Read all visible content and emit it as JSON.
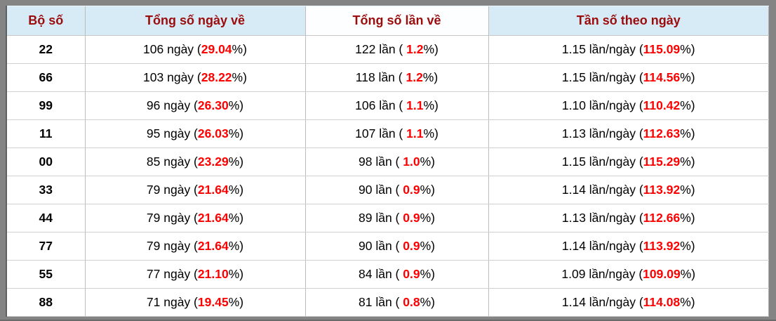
{
  "colors": {
    "frame_background": "#848484",
    "header_background": "#d7ebf7",
    "header_highlight_background": "#fcfeff",
    "header_text": "#9b0c0c",
    "value_red": "#fe0000",
    "row_background": "#ffffff"
  },
  "table": {
    "headers": [
      "Bộ số",
      "Tổng số ngày về",
      "Tổng số lần về",
      "Tần số theo ngày"
    ],
    "highlighted_header_index": 2,
    "rows": [
      {
        "set": "22",
        "days": {
          "pre": "106 ngày (",
          "val": "29.04",
          "suf": "%)"
        },
        "times": {
          "pre": "122 lần ( ",
          "val": "1.2",
          "suf": "%)"
        },
        "freq": {
          "pre": "1.15 lần/ngày (",
          "val": "115.09",
          "suf": "%)"
        }
      },
      {
        "set": "66",
        "days": {
          "pre": "103 ngày (",
          "val": "28.22",
          "suf": "%)"
        },
        "times": {
          "pre": "118 lần ( ",
          "val": "1.2",
          "suf": "%)"
        },
        "freq": {
          "pre": "1.15 lần/ngày (",
          "val": "114.56",
          "suf": "%)"
        }
      },
      {
        "set": "99",
        "days": {
          "pre": "96 ngày (",
          "val": "26.30",
          "suf": "%)"
        },
        "times": {
          "pre": "106 lần ( ",
          "val": "1.1",
          "suf": "%)"
        },
        "freq": {
          "pre": "1.10 lần/ngày (",
          "val": "110.42",
          "suf": "%)"
        }
      },
      {
        "set": "11",
        "days": {
          "pre": "95 ngày (",
          "val": "26.03",
          "suf": "%)"
        },
        "times": {
          "pre": "107 lần ( ",
          "val": "1.1",
          "suf": "%)"
        },
        "freq": {
          "pre": "1.13 lần/ngày (",
          "val": "112.63",
          "suf": "%)"
        }
      },
      {
        "set": "00",
        "days": {
          "pre": "85 ngày (",
          "val": "23.29",
          "suf": "%)"
        },
        "times": {
          "pre": "98 lần ( ",
          "val": "1.0",
          "suf": "%)"
        },
        "freq": {
          "pre": "1.15 lần/ngày (",
          "val": "115.29",
          "suf": "%)"
        }
      },
      {
        "set": "33",
        "days": {
          "pre": "79 ngày (",
          "val": "21.64",
          "suf": "%)"
        },
        "times": {
          "pre": "90 lần ( ",
          "val": "0.9",
          "suf": "%)"
        },
        "freq": {
          "pre": "1.14 lần/ngày (",
          "val": "113.92",
          "suf": "%)"
        }
      },
      {
        "set": "44",
        "days": {
          "pre": "79 ngày (",
          "val": "21.64",
          "suf": "%)"
        },
        "times": {
          "pre": "89 lần ( ",
          "val": "0.9",
          "suf": "%)"
        },
        "freq": {
          "pre": "1.13 lần/ngày (",
          "val": "112.66",
          "suf": "%)"
        }
      },
      {
        "set": "77",
        "days": {
          "pre": "79 ngày (",
          "val": "21.64",
          "suf": "%)"
        },
        "times": {
          "pre": "90 lần ( ",
          "val": "0.9",
          "suf": "%)"
        },
        "freq": {
          "pre": "1.14 lần/ngày (",
          "val": "113.92",
          "suf": "%)"
        }
      },
      {
        "set": "55",
        "days": {
          "pre": "77 ngày (",
          "val": "21.10",
          "suf": "%)"
        },
        "times": {
          "pre": "84 lần ( ",
          "val": "0.9",
          "suf": "%)"
        },
        "freq": {
          "pre": "1.09 lần/ngày (",
          "val": "109.09",
          "suf": "%)"
        }
      },
      {
        "set": "88",
        "days": {
          "pre": "71 ngày (",
          "val": "19.45",
          "suf": "%)"
        },
        "times": {
          "pre": "81 lần ( ",
          "val": "0.8",
          "suf": "%)"
        },
        "freq": {
          "pre": "1.14 lần/ngày (",
          "val": "114.08",
          "suf": "%)"
        }
      }
    ]
  }
}
